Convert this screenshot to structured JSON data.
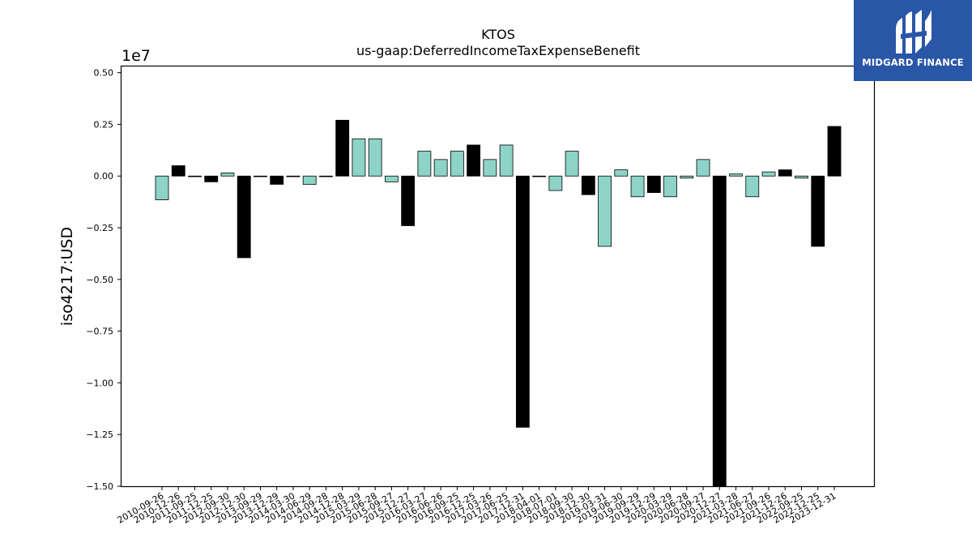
{
  "logo": {
    "name": "MIDGARD FINANCE",
    "icon": "midgard-logo-icon",
    "background": "#2a56a8"
  },
  "chart_data": {
    "type": "bar",
    "title": "KTOS",
    "subtitle": "us-gaap:DeferredIncomeTaxExpenseBenefit",
    "xlabel": "",
    "ylabel": "iso4217:USD",
    "scale_label": "1e7",
    "ylim": [
      -15000000,
      5300000
    ],
    "yticks": [
      0.5,
      0.25,
      0.0,
      -0.25,
      -0.5,
      -0.75,
      -1.0,
      -1.25,
      -1.5
    ],
    "ytick_labels": [
      "0.50",
      "0.25",
      "0.00",
      "−0.25",
      "−0.50",
      "−0.75",
      "−1.00",
      "−1.25",
      "−1.50"
    ],
    "grid": false,
    "colors": {
      "primary": "#8dd3c7",
      "alternate": "#000000"
    },
    "categories": [
      "2010-09-26",
      "2010-12-26",
      "2011-09-25",
      "2011-12-25",
      "2012-09-30",
      "2012-12-30",
      "2013-09-29",
      "2013-12-29",
      "2014-03-30",
      "2014-06-29",
      "2014-09-28",
      "2014-12-28",
      "2015-03-29",
      "2015-06-28",
      "2015-09-27",
      "2015-12-27",
      "2016-03-27",
      "2016-06-26",
      "2016-09-25",
      "2016-12-25",
      "2017-03-26",
      "2017-06-25",
      "2017-12-31",
      "2018-04-01",
      "2018-07-01",
      "2018-09-30",
      "2018-12-30",
      "2019-03-31",
      "2019-06-30",
      "2019-09-29",
      "2019-12-29",
      "2020-03-29",
      "2020-06-28",
      "2020-09-27",
      "2020-12-27",
      "2021-03-28",
      "2021-06-27",
      "2021-09-26",
      "2021-12-26",
      "2022-09-25",
      "2022-12-25",
      "2023-12-31"
    ],
    "values": [
      -1150000,
      500000,
      -30000,
      -280000,
      150000,
      -3950000,
      -30000,
      -400000,
      -30000,
      -400000,
      -30000,
      2700000,
      1800000,
      1800000,
      -280000,
      -2400000,
      1200000,
      800000,
      1200000,
      1500000,
      800000,
      1500000,
      -12150000,
      -30000,
      -700000,
      1200000,
      -900000,
      -3400000,
      300000,
      -1000000,
      -800000,
      -1000000,
      -100000,
      800000,
      -15000000,
      100000,
      -1000000,
      200000,
      300000,
      -100000,
      -3400000,
      2400000
    ],
    "bar_colors": [
      "#8dd3c7",
      "#000000",
      "#8dd3c7",
      "#000000",
      "#8dd3c7",
      "#000000",
      "#8dd3c7",
      "#000000",
      "#8dd3c7",
      "#8dd3c7",
      "#8dd3c7",
      "#000000",
      "#8dd3c7",
      "#8dd3c7",
      "#8dd3c7",
      "#000000",
      "#8dd3c7",
      "#8dd3c7",
      "#8dd3c7",
      "#000000",
      "#8dd3c7",
      "#8dd3c7",
      "#000000",
      "#8dd3c7",
      "#8dd3c7",
      "#8dd3c7",
      "#000000",
      "#8dd3c7",
      "#8dd3c7",
      "#8dd3c7",
      "#000000",
      "#8dd3c7",
      "#8dd3c7",
      "#8dd3c7",
      "#000000",
      "#8dd3c7",
      "#8dd3c7",
      "#8dd3c7",
      "#000000",
      "#8dd3c7",
      "#000000",
      "#000000"
    ]
  }
}
